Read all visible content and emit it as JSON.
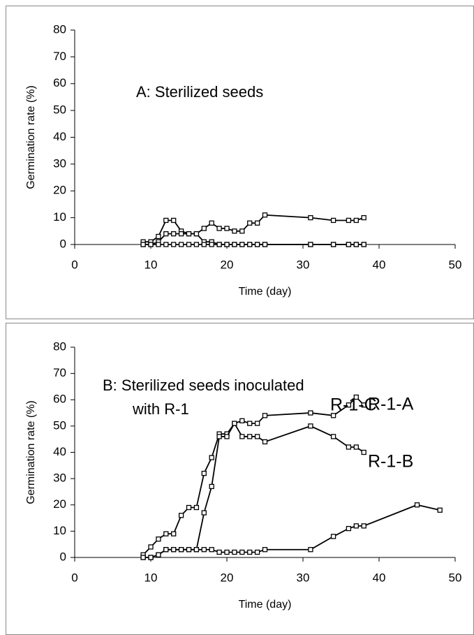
{
  "chart_data": [
    {
      "type": "line",
      "annotation": [
        "A:  Sterilized seeds"
      ],
      "xlabel": "Time (day)",
      "ylabel": "Germination rate (%)",
      "xlim": [
        0,
        50
      ],
      "xticks": [
        0,
        10,
        20,
        30,
        40,
        50
      ],
      "ylim": [
        0,
        80
      ],
      "yticks": [
        0,
        10,
        20,
        30,
        40,
        50,
        60,
        70,
        80
      ],
      "series": [
        {
          "color": "#000000",
          "x": [
            9,
            10,
            11,
            12,
            13,
            14,
            15,
            16,
            17,
            18,
            19,
            20,
            21,
            22,
            23,
            24,
            25,
            31,
            34,
            36,
            37,
            38
          ],
          "values": [
            1,
            1,
            3,
            9,
            9,
            5,
            4,
            4,
            6,
            8,
            6,
            6,
            5,
            5,
            8,
            8,
            11,
            10,
            9,
            9,
            9,
            10
          ]
        },
        {
          "color": "#000000",
          "x": [
            9,
            10,
            11,
            12,
            13,
            14,
            15,
            16,
            17,
            18,
            19,
            20,
            21,
            22,
            23,
            24,
            25,
            31,
            34,
            36,
            37,
            38
          ],
          "values": [
            0,
            0,
            1,
            4,
            4,
            4,
            4,
            4,
            1,
            1,
            0,
            0,
            0,
            0,
            0,
            0,
            0,
            0,
            0,
            0,
            0,
            0
          ]
        },
        {
          "color": "#000000",
          "x": [
            9,
            10,
            11,
            12,
            13,
            14,
            15,
            16,
            17,
            18,
            19,
            20,
            21,
            22,
            23,
            24,
            25,
            31,
            34,
            36,
            37,
            38
          ],
          "values": [
            0,
            0,
            0,
            0,
            0,
            0,
            0,
            0,
            0,
            0,
            0,
            0,
            0,
            0,
            0,
            0,
            0,
            0,
            0,
            0,
            0,
            0
          ]
        }
      ]
    },
    {
      "type": "line",
      "annotation": [
        "B:  Sterilized seeds inoculated",
        "with R-1"
      ],
      "xlabel": "Time (day)",
      "ylabel": "Germination rate (%)",
      "xlim": [
        0,
        50
      ],
      "xticks": [
        0,
        10,
        20,
        30,
        40,
        50
      ],
      "ylim": [
        0,
        80
      ],
      "yticks": [
        0,
        10,
        20,
        30,
        40,
        50,
        60,
        70,
        80
      ],
      "series": [
        {
          "name": "R-1-A",
          "color": "#000000",
          "x": [
            9,
            10,
            11,
            12,
            13,
            14,
            15,
            16,
            17,
            18,
            19,
            20,
            21,
            22,
            23,
            24,
            25,
            31,
            34,
            36,
            37,
            38
          ],
          "values": [
            1,
            4,
            7,
            9,
            9,
            16,
            19,
            19,
            32,
            38,
            47,
            47,
            51,
            52,
            51,
            51,
            54,
            55,
            54,
            58,
            61,
            58
          ]
        },
        {
          "name": "R-1-B",
          "color": "#000000",
          "x": [
            9,
            10,
            11,
            12,
            13,
            14,
            15,
            16,
            17,
            18,
            19,
            20,
            21,
            22,
            23,
            24,
            25,
            31,
            34,
            36,
            37,
            38
          ],
          "values": [
            0,
            0,
            1,
            3,
            3,
            3,
            3,
            3,
            17,
            27,
            46,
            46,
            51,
            46,
            46,
            46,
            44,
            50,
            46,
            42,
            42,
            40
          ]
        },
        {
          "name": "R-1-C",
          "color": "#000000",
          "x": [
            9,
            10,
            11,
            12,
            13,
            14,
            15,
            16,
            17,
            18,
            19,
            20,
            21,
            22,
            23,
            24,
            25,
            31,
            34,
            36,
            37,
            38,
            45,
            48
          ],
          "values": [
            0,
            0,
            1,
            3,
            3,
            3,
            3,
            3,
            3,
            3,
            2,
            2,
            2,
            2,
            2,
            2,
            3,
            3,
            8,
            11,
            12,
            12,
            20,
            18
          ]
        }
      ]
    }
  ]
}
